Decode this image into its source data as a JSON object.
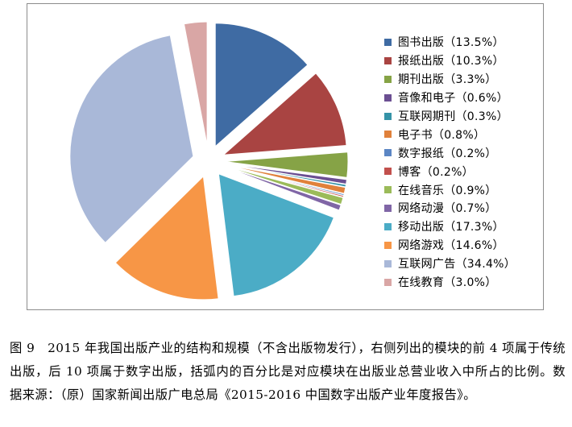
{
  "chart_data": {
    "type": "pie",
    "title": "",
    "slices": [
      {
        "label": "图书出版（13.5%）",
        "value": 13.5,
        "color": "#3f6ba3"
      },
      {
        "label": "报纸出版（10.3%）",
        "value": 10.3,
        "color": "#a94442"
      },
      {
        "label": "期刊出版（3.3%）",
        "value": 3.3,
        "color": "#86a346"
      },
      {
        "label": "音像和电子（0.6%）",
        "value": 0.6,
        "color": "#6b4f92"
      },
      {
        "label": "互联网期刊（0.3%）",
        "value": 0.3,
        "color": "#3593a7"
      },
      {
        "label": "电子书（0.8%）",
        "value": 0.8,
        "color": "#e0813b"
      },
      {
        "label": "数字报纸（0.2%）",
        "value": 0.2,
        "color": "#5b86c4"
      },
      {
        "label": "博客（0.2%）",
        "value": 0.2,
        "color": "#c2504d"
      },
      {
        "label": "在线音乐（0.9%）",
        "value": 0.9,
        "color": "#9bbb59"
      },
      {
        "label": "网络动漫（0.7%）",
        "value": 0.7,
        "color": "#8066a6"
      },
      {
        "label": "移动出版（17.3%）",
        "value": 17.3,
        "color": "#4bacc6"
      },
      {
        "label": "网络游戏（14.6%）",
        "value": 14.6,
        "color": "#f79646"
      },
      {
        "label": "互联网广告（34.4%）",
        "value": 34.4,
        "color": "#a9b8d8"
      },
      {
        "label": "在线教育（3.0%）",
        "value": 3.0,
        "color": "#d9a6a5"
      }
    ],
    "legend_position": "right",
    "exploded": true
  },
  "caption": "图 9　2015 年我国出版产业的结构和规模（不含出版物发行），右侧列出的模块的前 4 项属于传统出版，后 10 项属于数字出版，括弧内的百分比是对应模块在出版业总营业收入中所占的比例。数据来源：（原）国家新闻出版广电总局《2015-2016 中国数字出版产业年度报告》。"
}
